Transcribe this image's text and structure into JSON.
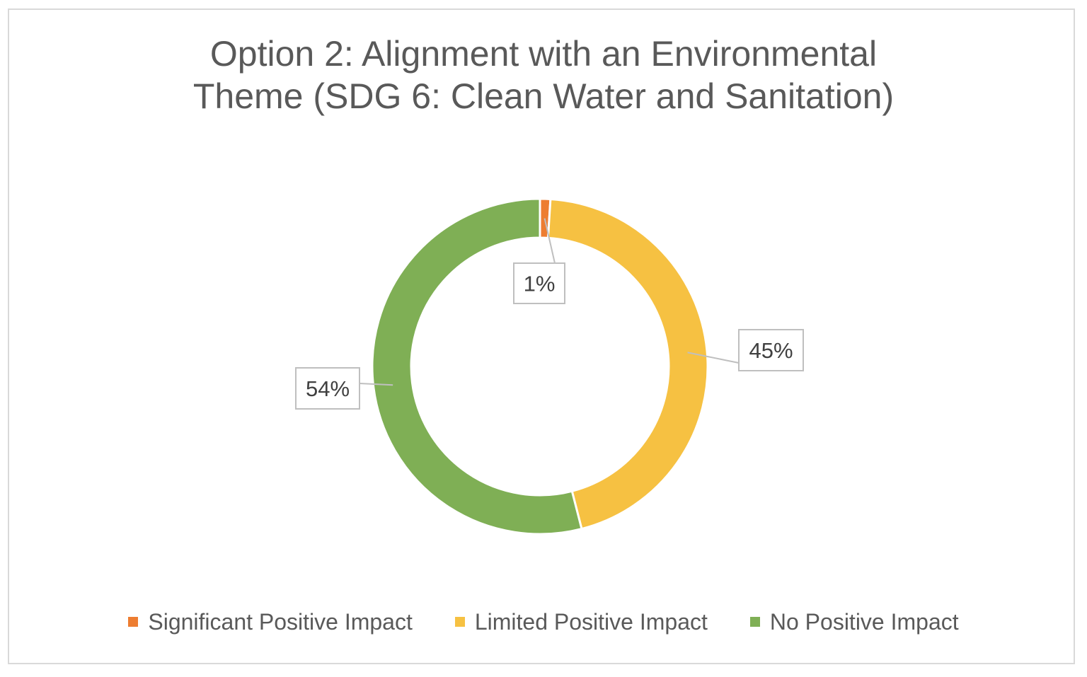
{
  "chart_data": {
    "type": "pie",
    "donut": true,
    "title": "Option 2: Alignment with an Environmental Theme (SDG 6: Clean Water and Sanitation)",
    "title_lines": [
      "Option 2: Alignment with an Environmental",
      "Theme (SDG 6: Clean Water and Sanitation)"
    ],
    "categories": [
      "Significant Positive Impact",
      "Limited Positive Impact",
      "No Positive Impact"
    ],
    "values": [
      1,
      45,
      54
    ],
    "labels": [
      "1%",
      "45%",
      "54%"
    ],
    "colors": [
      "#ed7d31",
      "#f6c142",
      "#7faf55"
    ],
    "legend_position": "bottom"
  }
}
